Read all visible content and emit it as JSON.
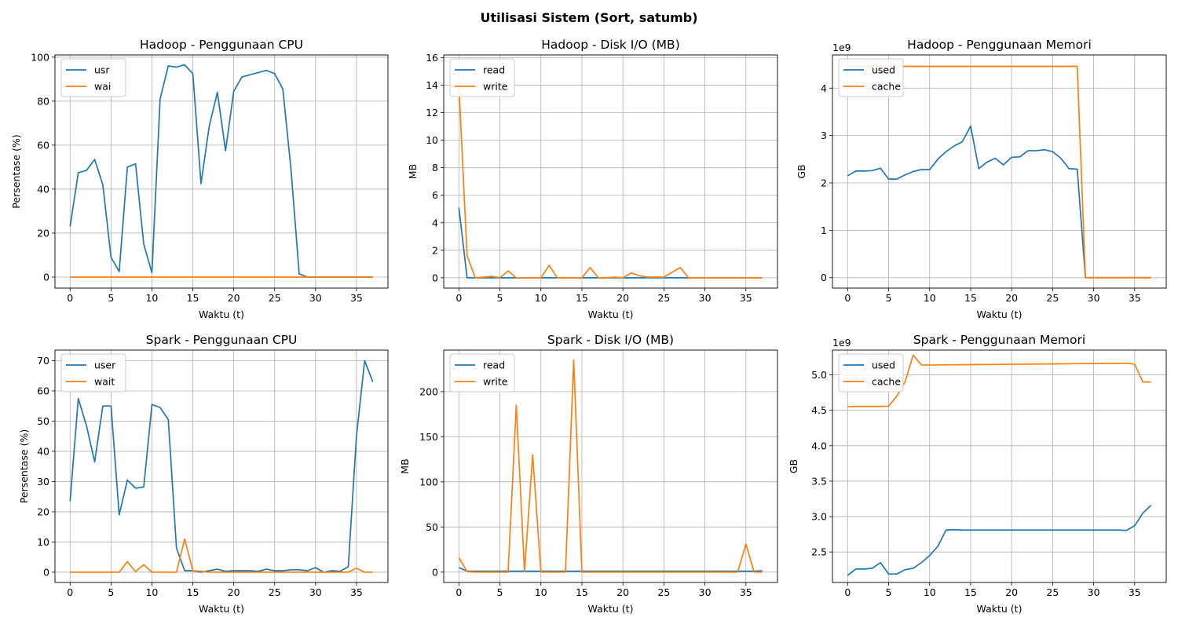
{
  "figure": {
    "suptitle": "Utilisasi Sistem (Sort, satumb)"
  },
  "colors": {
    "series1": "#1f77b4",
    "series2": "#ff7f0e",
    "grid": "#b0b0b0"
  },
  "chart_data": [
    {
      "type": "line",
      "title": "Hadoop - Penggunaan CPU",
      "xlabel": "Waktu (t)",
      "ylabel": "Persentase (%)",
      "xlim": [
        -1.85,
        38.85
      ],
      "ylim": [
        -5,
        101
      ],
      "xticks": [
        0,
        5,
        10,
        15,
        20,
        25,
        30,
        35
      ],
      "yticks": [
        0,
        20,
        40,
        60,
        80,
        100
      ],
      "ytick_labels": [
        "0",
        "20",
        "40",
        "60",
        "80",
        "100"
      ],
      "scale_label": "",
      "grid": true,
      "legend": "top-left",
      "x": [
        0,
        1,
        2,
        3,
        4,
        5,
        6,
        7,
        8,
        9,
        10,
        11,
        12,
        13,
        14,
        15,
        16,
        17,
        18,
        19,
        20,
        21,
        22,
        23,
        24,
        25,
        26,
        27,
        28,
        29,
        30,
        31,
        32,
        33,
        34,
        35,
        36,
        37
      ],
      "series": [
        {
          "name": "usr",
          "color": "#1f77b4",
          "values": [
            23,
            47.5,
            48.5,
            53.5,
            42,
            9,
            2.5,
            50,
            51.5,
            15,
            2,
            81,
            96,
            95.5,
            96.5,
            92.5,
            42.5,
            68.5,
            84,
            57.5,
            84.5,
            91,
            92,
            93,
            94,
            92.5,
            85.5,
            49,
            1.5,
            0,
            0,
            0,
            0,
            0,
            0,
            0,
            0,
            0
          ]
        },
        {
          "name": "wai",
          "color": "#ff7f0e",
          "values": [
            0,
            0,
            0,
            0,
            0,
            0,
            0,
            0,
            0,
            0,
            0,
            0,
            0,
            0,
            0,
            0,
            0,
            0,
            0,
            0,
            0,
            0,
            0,
            0,
            0,
            0,
            0,
            0,
            0,
            0,
            0,
            0,
            0,
            0,
            0,
            0,
            0,
            0
          ]
        }
      ]
    },
    {
      "type": "line",
      "title": "Hadoop - Disk I/O (MB)",
      "xlabel": "Waktu (t)",
      "ylabel": "MB",
      "xlim": [
        -1.85,
        38.85
      ],
      "ylim": [
        -0.75,
        16.2
      ],
      "xticks": [
        0,
        5,
        10,
        15,
        20,
        25,
        30,
        35
      ],
      "yticks": [
        0,
        2,
        4,
        6,
        8,
        10,
        12,
        14,
        16
      ],
      "ytick_labels": [
        "0",
        "2",
        "4",
        "6",
        "8",
        "10",
        "12",
        "14",
        "16"
      ],
      "scale_label": "",
      "grid": true,
      "legend": "top-left",
      "x": [
        0,
        1,
        2,
        3,
        4,
        5,
        6,
        7,
        8,
        9,
        10,
        11,
        12,
        13,
        14,
        15,
        16,
        17,
        18,
        19,
        20,
        21,
        22,
        23,
        24,
        25,
        26,
        27,
        28,
        29,
        30,
        31,
        32,
        33,
        34,
        35,
        36,
        37
      ],
      "series": [
        {
          "name": "read",
          "color": "#1f77b4",
          "values": [
            5.1,
            0,
            0,
            0,
            0,
            0,
            0,
            0,
            0,
            0,
            0,
            0,
            0,
            0,
            0,
            0,
            0,
            0,
            0,
            0,
            0,
            0,
            0,
            0,
            0,
            0,
            0,
            0,
            0,
            0,
            0,
            0,
            0,
            0,
            0,
            0,
            0,
            0
          ]
        },
        {
          "name": "write",
          "color": "#ff7f0e",
          "values": [
            14,
            1.6,
            0,
            0.05,
            0.1,
            0,
            0.5,
            0,
            0,
            0,
            0,
            0.9,
            0,
            0,
            0,
            0,
            0.75,
            0,
            0,
            0.05,
            0,
            0.35,
            0.15,
            0.05,
            0.05,
            0.05,
            0.4,
            0.75,
            0,
            0,
            0,
            0,
            0,
            0,
            0,
            0,
            0,
            0
          ]
        }
      ]
    },
    {
      "type": "line",
      "title": "Hadoop - Penggunaan Memori",
      "xlabel": "Waktu (t)",
      "ylabel": "GB",
      "xlim": [
        -1.85,
        38.85
      ],
      "ylim": [
        -220000000.0,
        4700000000.0
      ],
      "xticks": [
        0,
        5,
        10,
        15,
        20,
        25,
        30,
        35
      ],
      "yticks": [
        0,
        1000000000.0,
        2000000000.0,
        3000000000.0,
        4000000000.0
      ],
      "ytick_labels": [
        "0",
        "1",
        "2",
        "3",
        "4"
      ],
      "scale_label": "1e9",
      "grid": true,
      "legend": "top-left",
      "x": [
        0,
        1,
        2,
        3,
        4,
        5,
        6,
        7,
        8,
        9,
        10,
        11,
        12,
        13,
        14,
        15,
        16,
        17,
        18,
        19,
        20,
        21,
        22,
        23,
        24,
        25,
        26,
        27,
        28,
        29,
        30,
        31,
        32,
        33,
        34,
        35,
        36,
        37
      ],
      "series": [
        {
          "name": "used",
          "color": "#1f77b4",
          "values": [
            2150000000.0,
            2250000000.0,
            2250000000.0,
            2260000000.0,
            2310000000.0,
            2080000000.0,
            2080000000.0,
            2170000000.0,
            2240000000.0,
            2280000000.0,
            2280000000.0,
            2500000000.0,
            2660000000.0,
            2780000000.0,
            2870000000.0,
            3200000000.0,
            2300000000.0,
            2440000000.0,
            2520000000.0,
            2380000000.0,
            2540000000.0,
            2550000000.0,
            2680000000.0,
            2680000000.0,
            2700000000.0,
            2660000000.0,
            2520000000.0,
            2300000000.0,
            2290000000.0,
            0,
            0,
            0,
            0,
            0,
            0,
            0,
            0,
            0
          ]
        },
        {
          "name": "cache",
          "color": "#ff7f0e",
          "values": [
            4460000000.0,
            4460000000.0,
            4460000000.0,
            4460000000.0,
            4460000000.0,
            4460000000.0,
            4460000000.0,
            4460000000.0,
            4460000000.0,
            4460000000.0,
            4460000000.0,
            4460000000.0,
            4460000000.0,
            4460000000.0,
            4460000000.0,
            4460000000.0,
            4460000000.0,
            4460000000.0,
            4460000000.0,
            4460000000.0,
            4460000000.0,
            4460000000.0,
            4460000000.0,
            4460000000.0,
            4460000000.0,
            4460000000.0,
            4460000000.0,
            4460000000.0,
            4460000000.0,
            0,
            0,
            0,
            0,
            0,
            0,
            0,
            0,
            0
          ]
        }
      ]
    },
    {
      "type": "line",
      "title": "Spark - Penggunaan CPU",
      "xlabel": "Waktu (t)",
      "ylabel": "Persentase (%)",
      "xlim": [
        -1.85,
        38.85
      ],
      "ylim": [
        -3.4,
        73.5
      ],
      "xticks": [
        0,
        5,
        10,
        15,
        20,
        25,
        30,
        35
      ],
      "yticks": [
        0,
        10,
        20,
        30,
        40,
        50,
        60,
        70
      ],
      "ytick_labels": [
        "0",
        "10",
        "20",
        "30",
        "40",
        "50",
        "60",
        "70"
      ],
      "scale_label": "",
      "grid": true,
      "legend": "top-left",
      "x": [
        0,
        1,
        2,
        3,
        4,
        5,
        6,
        7,
        8,
        9,
        10,
        11,
        12,
        13,
        14,
        15,
        16,
        17,
        18,
        19,
        20,
        21,
        22,
        23,
        24,
        25,
        26,
        27,
        28,
        29,
        30,
        31,
        32,
        33,
        34,
        35,
        36,
        37
      ],
      "series": [
        {
          "name": "user",
          "color": "#1f77b4",
          "values": [
            23.5,
            57.5,
            48.5,
            36.5,
            55,
            55,
            19,
            30.5,
            27.8,
            28.2,
            55.5,
            54.5,
            50.5,
            8,
            0.5,
            0.5,
            0,
            0.5,
            1,
            0.3,
            0.5,
            0.5,
            0.5,
            0.3,
            1,
            0.5,
            0.5,
            0.8,
            0.8,
            0.5,
            1.5,
            0,
            0.5,
            0.3,
            1.8,
            45,
            70,
            63
          ]
        },
        {
          "name": "wait",
          "color": "#ff7f0e",
          "values": [
            0,
            0,
            0,
            0,
            0,
            0,
            0,
            3.5,
            0.2,
            2.5,
            0,
            0,
            0,
            0,
            11,
            0.5,
            0.3,
            0,
            0,
            0,
            0,
            0,
            0,
            0,
            0,
            0,
            0,
            0,
            0,
            0,
            0,
            0,
            0,
            0,
            0,
            1.3,
            0,
            0
          ]
        }
      ]
    },
    {
      "type": "line",
      "title": "Spark - Disk I/O (MB)",
      "xlabel": "Waktu (t)",
      "ylabel": "MB",
      "xlim": [
        -1.85,
        38.85
      ],
      "ylim": [
        -11.5,
        246
      ],
      "xticks": [
        0,
        5,
        10,
        15,
        20,
        25,
        30,
        35
      ],
      "yticks": [
        0,
        50,
        100,
        150,
        200
      ],
      "ytick_labels": [
        "0",
        "50",
        "100",
        "150",
        "200"
      ],
      "scale_label": "",
      "grid": true,
      "legend": "top-left",
      "x": [
        0,
        1,
        2,
        3,
        4,
        5,
        6,
        7,
        8,
        9,
        10,
        11,
        12,
        13,
        14,
        15,
        16,
        17,
        18,
        19,
        20,
        21,
        22,
        23,
        24,
        25,
        26,
        27,
        28,
        29,
        30,
        31,
        32,
        33,
        34,
        35,
        36,
        37
      ],
      "series": [
        {
          "name": "read",
          "color": "#1f77b4",
          "values": [
            5,
            1,
            1,
            1,
            1,
            1,
            1,
            1,
            1,
            1,
            1,
            1,
            1,
            1,
            1,
            1,
            1,
            1,
            1,
            1,
            1,
            1,
            1,
            1,
            1,
            1,
            1,
            1,
            1,
            1,
            1,
            1,
            1,
            1,
            1,
            1,
            1,
            1.5
          ]
        },
        {
          "name": "write",
          "color": "#ff7f0e",
          "values": [
            16,
            0.5,
            0,
            0,
            0,
            0,
            0,
            185,
            0.5,
            130,
            0,
            0,
            0,
            0,
            235,
            0,
            0,
            0,
            0,
            0,
            0,
            0,
            0,
            0,
            0,
            0,
            0,
            0,
            0,
            0,
            0,
            0,
            0,
            0,
            0,
            31,
            0,
            0
          ]
        }
      ]
    },
    {
      "type": "line",
      "title": "Spark - Penggunaan Memori",
      "xlabel": "Waktu (t)",
      "ylabel": "GB",
      "xlim": [
        -1.85,
        38.85
      ],
      "ylim": [
        2070000000.0,
        5350000000.0
      ],
      "xticks": [
        0,
        5,
        10,
        15,
        20,
        25,
        30,
        35
      ],
      "yticks": [
        2500000000.0,
        3000000000.0,
        3500000000.0,
        4000000000.0,
        4500000000.0,
        5000000000.0
      ],
      "ytick_labels": [
        "2.5",
        "3.0",
        "3.5",
        "4.0",
        "4.5",
        "5.0"
      ],
      "scale_label": "1e9",
      "grid": true,
      "legend": "top-left",
      "x": [
        0,
        1,
        2,
        3,
        4,
        5,
        6,
        7,
        8,
        9,
        10,
        11,
        12,
        13,
        14,
        15,
        16,
        17,
        18,
        19,
        20,
        21,
        22,
        23,
        24,
        25,
        26,
        27,
        28,
        29,
        30,
        31,
        32,
        33,
        34,
        35,
        36,
        37
      ],
      "series": [
        {
          "name": "used",
          "color": "#1f77b4",
          "values": [
            2170000000.0,
            2260000000.0,
            2260000000.0,
            2270000000.0,
            2350000000.0,
            2190000000.0,
            2190000000.0,
            2250000000.0,
            2270000000.0,
            2350000000.0,
            2450000000.0,
            2580000000.0,
            2810000000.0,
            2815000000.0,
            2810000000.0,
            2810000000.0,
            2810000000.0,
            2810000000.0,
            2810000000.0,
            2810000000.0,
            2810000000.0,
            2810000000.0,
            2810000000.0,
            2810000000.0,
            2810000000.0,
            2810000000.0,
            2810000000.0,
            2810000000.0,
            2810000000.0,
            2810000000.0,
            2810000000.0,
            2810000000.0,
            2810000000.0,
            2810000000.0,
            2805000000.0,
            2870000000.0,
            3050000000.0,
            3160000000.0
          ]
        },
        {
          "name": "cache",
          "color": "#ff7f0e",
          "values": [
            4550000000.0,
            4555000000.0,
            4555000000.0,
            4555000000.0,
            4555000000.0,
            4560000000.0,
            4700000000.0,
            4900000000.0,
            5280000000.0,
            5140000000.0,
            5140000000.0,
            5140000000.0,
            5142000000.0,
            5143000000.0,
            5144000000.0,
            5145000000.0,
            5146000000.0,
            5147000000.0,
            5148000000.0,
            5149000000.0,
            5150000000.0,
            5151000000.0,
            5152000000.0,
            5153000000.0,
            5154000000.0,
            5155000000.0,
            5156000000.0,
            5157000000.0,
            5158000000.0,
            5159000000.0,
            5160000000.0,
            5161000000.0,
            5162000000.0,
            5163000000.0,
            5165000000.0,
            5150000000.0,
            4900000000.0,
            4900000000.0
          ]
        }
      ]
    }
  ]
}
